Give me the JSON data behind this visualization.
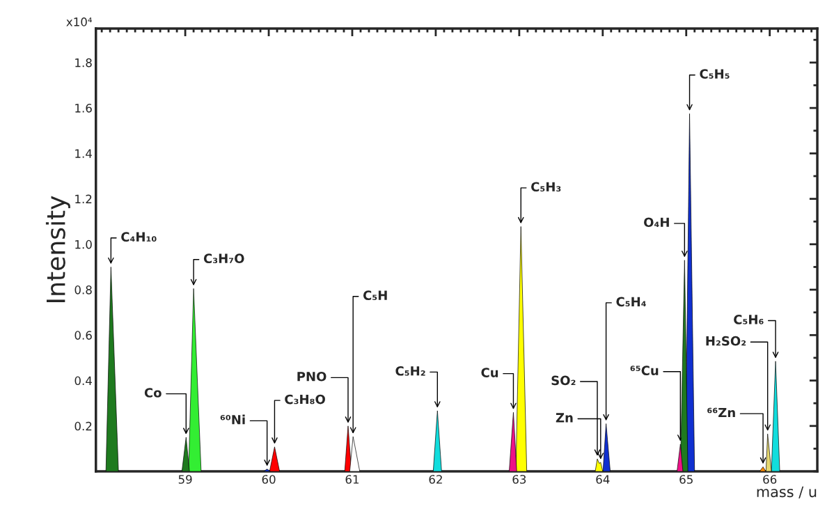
{
  "chart_data": {
    "type": "area",
    "xlabel": "mass / u",
    "ylabel": "Intensity",
    "xlim": [
      57.93,
      66.57
    ],
    "ylim": [
      0,
      1.95
    ],
    "xticks": [
      59,
      60,
      61,
      62,
      63,
      64,
      65,
      66
    ],
    "yticks": [
      0.2,
      0.4,
      0.6,
      0.8,
      {
        "value": 1.0,
        "label": "1.0"
      },
      1.2,
      1.4,
      1.6,
      1.8
    ],
    "grid": false,
    "legend": false,
    "series": [
      {
        "color": "#1f7a1f",
        "x": [
          58.05,
          58.11,
          58.2
        ],
        "values": [
          0,
          0.9,
          0
        ]
      },
      {
        "color": "#1f7a1f",
        "x": [
          58.96,
          59.01,
          59.05
        ],
        "values": [
          0,
          0.15,
          0
        ]
      },
      {
        "color": "#33ee33",
        "x": [
          59.04,
          59.1,
          59.19
        ],
        "values": [
          0,
          0.805,
          0
        ]
      },
      {
        "color": "#1030d0",
        "x": [
          59.94,
          59.98,
          60.02
        ],
        "values": [
          0,
          0.01,
          0
        ]
      },
      {
        "color": "#ff0000",
        "x": [
          60.01,
          60.07,
          60.13
        ],
        "values": [
          0,
          0.108,
          0
        ]
      },
      {
        "color": "#ff0000",
        "x": [
          60.91,
          60.95,
          60.99
        ],
        "values": [
          0,
          0.2,
          0
        ]
      },
      {
        "color": "#ffffff",
        "x": [
          60.97,
          61.01,
          61.09
        ],
        "values": [
          0,
          0.153,
          0
        ]
      },
      {
        "color": "#11dddd",
        "x": [
          61.97,
          62.02,
          62.07
        ],
        "values": [
          0,
          0.267,
          0
        ]
      },
      {
        "color": "#ee1188",
        "x": [
          62.88,
          62.93,
          62.97
        ],
        "values": [
          0,
          0.26,
          0
        ]
      },
      {
        "color": "#ffff00",
        "x": [
          62.96,
          63.02,
          63.09
        ],
        "values": [
          0,
          1.078,
          0
        ]
      },
      {
        "color": "#ffff00",
        "x": [
          63.91,
          63.935,
          63.958,
          63.975,
          64.0
        ],
        "values": [
          0,
          0.055,
          0.035,
          0.04,
          0
        ]
      },
      {
        "color": "#1030d0",
        "x": [
          64.003,
          64.04,
          64.09
        ],
        "values": [
          0,
          0.21,
          0
        ]
      },
      {
        "color": "#ee1188",
        "x": [
          64.89,
          64.93,
          64.96
        ],
        "values": [
          0,
          0.12,
          0
        ]
      },
      {
        "color": "#1f7a1f",
        "x": [
          64.93,
          64.98,
          65.02
        ],
        "values": [
          0,
          0.93,
          0
        ]
      },
      {
        "color": "#1030d0",
        "x": [
          64.99,
          65.04,
          65.1
        ],
        "values": [
          0,
          1.575,
          0
        ]
      },
      {
        "color": "#e6d870",
        "x": [
          65.955,
          65.975,
          66.02
        ],
        "values": [
          0,
          0.165,
          0
        ]
      },
      {
        "color": "#ff8c00",
        "x": [
          65.88,
          65.92,
          65.952
        ],
        "values": [
          0,
          0.02,
          0
        ]
      },
      {
        "color": "#11dddd",
        "x": [
          66.02,
          66.07,
          66.12
        ],
        "values": [
          0,
          0.485,
          0
        ]
      }
    ],
    "annotations": [
      "x10⁴",
      {
        "text": "C₄H₁₀",
        "x": 58.11,
        "y": 0.9
      },
      {
        "text": "Co",
        "x": 59.01,
        "y": 0.15
      },
      {
        "text": "C₃H₇O",
        "x": 59.1,
        "y": 0.805
      },
      {
        "text": "⁶⁰Ni",
        "x": 59.98,
        "y": 0.01
      },
      {
        "text": "C₃H₈O",
        "x": 60.07,
        "y": 0.108
      },
      {
        "text": "PNO",
        "x": 60.95,
        "y": 0.2
      },
      {
        "text": "C₅H",
        "x": 61.01,
        "y": 0.153
      },
      {
        "text": "C₅H₂",
        "x": 62.02,
        "y": 0.267
      },
      {
        "text": "Cu",
        "x": 62.93,
        "y": 0.26
      },
      {
        "text": "C₅H₃",
        "x": 63.02,
        "y": 1.078
      },
      {
        "text": "SO₂",
        "x": 63.935,
        "y": 0.055
      },
      {
        "text": "Zn",
        "x": 63.975,
        "y": 0.04
      },
      {
        "text": "C₅H₄",
        "x": 64.04,
        "y": 0.21
      },
      {
        "text": "⁶⁵Cu",
        "x": 64.93,
        "y": 0.12
      },
      {
        "text": "O₄H",
        "x": 64.98,
        "y": 0.93
      },
      {
        "text": "C₅H₅",
        "x": 65.04,
        "y": 1.575
      },
      {
        "text": "H₂SO₂",
        "x": 65.975,
        "y": 0.165
      },
      {
        "text": "⁶⁶Zn",
        "x": 65.92,
        "y": 0.02
      },
      {
        "text": "C₅H₆",
        "x": 66.07,
        "y": 0.485
      }
    ]
  }
}
